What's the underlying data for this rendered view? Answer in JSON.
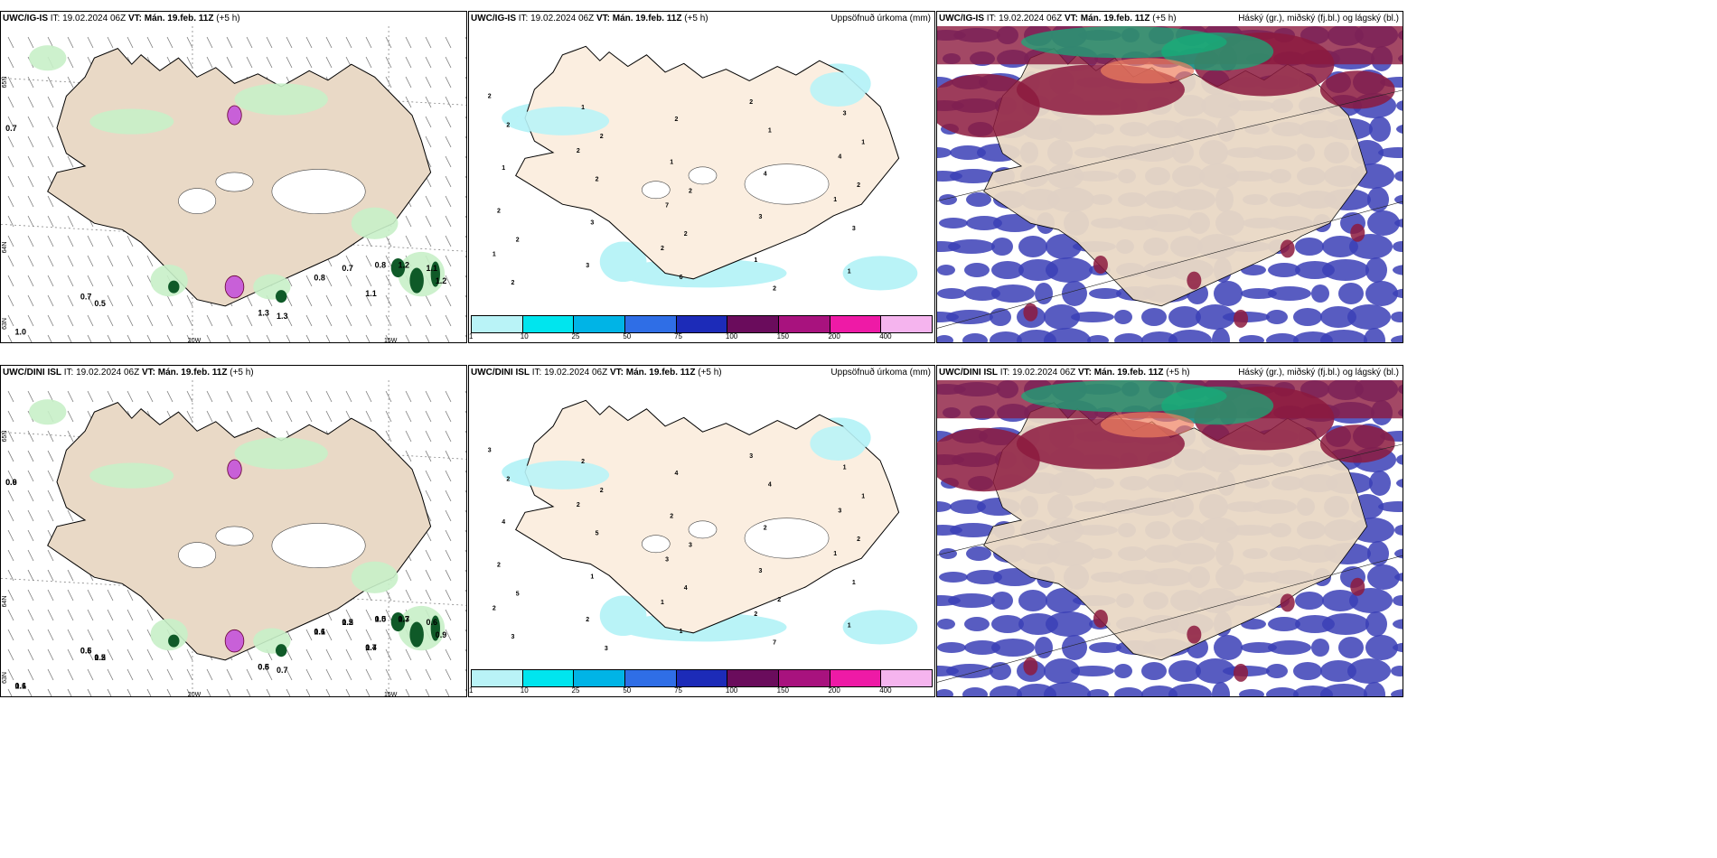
{
  "rows": [
    {
      "panels": [
        {
          "model": "UWC/IG-IS",
          "it_label": "IT:",
          "it_value": "19.02.2024 06Z",
          "vt_label": "VT:",
          "vt_value": "Mán. 19.feb. 11Z",
          "lead": "(+5 h)",
          "right_title": "",
          "kind": "wind",
          "labels": [
            "0.7",
            "0.7",
            "0.5",
            "1.0",
            "0.7",
            "0.8",
            "0.8",
            "1.1",
            "1.2",
            "1.3",
            "1.3",
            "1.1",
            "1.2"
          ],
          "lat_labels": [
            "65N",
            "64N",
            "63N"
          ],
          "lon_labels": [
            "20W",
            "15W"
          ]
        },
        {
          "model": "UWC/IG-IS",
          "it_label": "IT:",
          "it_value": "19.02.2024 06Z",
          "vt_label": "VT:",
          "vt_value": "Mán. 19.feb. 11Z",
          "lead": "(+5 h)",
          "right_title": "Uppsöfnuð úrkoma (mm)",
          "kind": "precip",
          "numbers": [
            "2",
            "2",
            "1",
            "2",
            "2",
            "1",
            "7",
            "4",
            "1",
            "1",
            "2",
            "1",
            "3",
            "3",
            "3",
            "1",
            "2",
            "1",
            "3",
            "4",
            "2",
            "6",
            "3",
            "2",
            "1",
            "2",
            "2",
            "2",
            "2",
            "2",
            "2",
            "2",
            "1"
          ],
          "colorbar": {
            "ticks": [
              "1",
              "10",
              "25",
              "50",
              "75",
              "100",
              "150",
              "200",
              "400"
            ],
            "colors": [
              "#b9f3f7",
              "#00e5ee",
              "#00b4e6",
              "#2f6ee6",
              "#1c2bb8",
              "#6a0c5c",
              "#a8127e",
              "#ee1aa6",
              "#f5b4ee"
            ]
          }
        },
        {
          "model": "UWC/IG-IS",
          "it_label": "IT:",
          "it_value": "19.02.2024 06Z",
          "vt_label": "VT:",
          "vt_value": "Mán. 19.feb. 11Z",
          "lead": "(+5 h)",
          "right_title": "Háský (gr.), miðský (fj.bl.) og lágský (bl.)",
          "kind": "cloud"
        }
      ]
    },
    {
      "panels": [
        {
          "model": "UWC/DINI ISL",
          "it_label": "IT:",
          "it_value": "19.02.2024 06Z",
          "vt_label": "VT:",
          "vt_value": "Mán. 19.feb. 11Z",
          "lead": "(+5 h)",
          "right_title": "",
          "kind": "wind",
          "labels": [
            "0.6",
            "0.6",
            "0.5",
            "0.6",
            "0.5",
            "0.6",
            "0.5",
            "0.7",
            "0.7",
            "0.6",
            "0.7",
            "0.6",
            "0.9",
            "0.9",
            "0.5",
            "1.2",
            "1.1",
            "1.2",
            "1.1",
            "1.0",
            "1.4",
            "1.3",
            "0.5"
          ],
          "lat_labels": [
            "65N",
            "64N",
            "63N"
          ],
          "lon_labels": [
            "20W",
            "15W"
          ]
        },
        {
          "model": "UWC/DINI ISL",
          "it_label": "IT:",
          "it_value": "19.02.2024 06Z",
          "vt_label": "VT:",
          "vt_value": "Mán. 19.feb. 11Z",
          "lead": "(+5 h)",
          "right_title": "Uppsöfnuð úrkoma (mm)",
          "kind": "precip",
          "numbers": [
            "3",
            "1",
            "1",
            "2",
            "3",
            "2",
            "3",
            "3",
            "2",
            "2",
            "2",
            "2",
            "1",
            "2",
            "3",
            "4",
            "4",
            "1",
            "1",
            "2",
            "2",
            "1",
            "1",
            "5",
            "4",
            "3",
            "4",
            "2",
            "2",
            "7",
            "5",
            "3",
            "1",
            "3",
            "2"
          ],
          "colorbar": {
            "ticks": [
              "1",
              "10",
              "25",
              "50",
              "75",
              "100",
              "150",
              "200",
              "400"
            ],
            "colors": [
              "#b9f3f7",
              "#00e5ee",
              "#00b4e6",
              "#2f6ee6",
              "#1c2bb8",
              "#6a0c5c",
              "#a8127e",
              "#ee1aa6",
              "#f5b4ee"
            ]
          }
        },
        {
          "model": "UWC/DINI ISL",
          "it_label": "IT:",
          "it_value": "19.02.2024 06Z",
          "vt_label": "VT:",
          "vt_value": "Mán. 19.feb. 11Z",
          "lead": "(+5 h)",
          "right_title": "Háský (gr.), miðský (fj.bl.) og lágský (bl.)",
          "kind": "cloud"
        }
      ]
    }
  ],
  "colors": {
    "land": "#e9d9c6",
    "land_precip": "#fbeee0",
    "sea": "#ffffff",
    "precip_light": "#c8f0c8",
    "precip_mid": "#3a9a50",
    "precip_dark": "#0f5a28",
    "snow_pink": "#c860d8",
    "cloud_low": "#3b3fb6",
    "cloud_mid": "#8c1a3e",
    "cloud_high": "#12b07a",
    "cyan_precip": "#b9f3f7"
  }
}
